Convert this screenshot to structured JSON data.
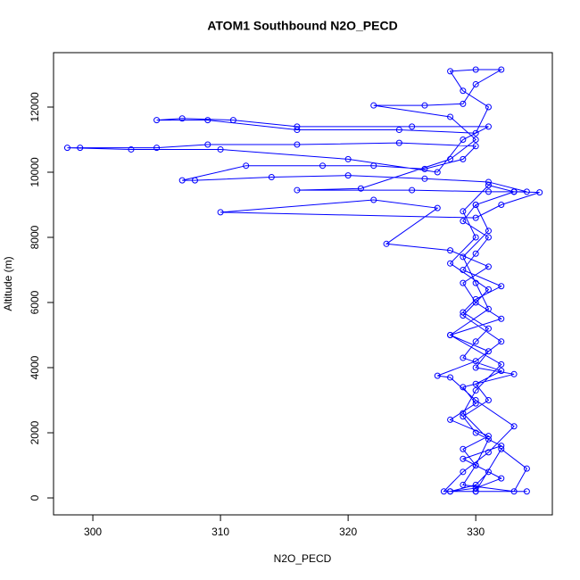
{
  "chart_data": {
    "type": "line",
    "title": "ATOM1 Southbound N2O_PECD",
    "x_label": "N2O_PECD",
    "y_label": "Altitude (m)",
    "xlim": [
      296.92,
      336.0
    ],
    "ylim": [
      -520,
      13671
    ],
    "xticks": [
      300,
      310,
      320,
      330
    ],
    "yticks": [
      0,
      2000,
      4000,
      6000,
      8000,
      10000,
      12000
    ],
    "markers": true,
    "series": [
      {
        "color": "#0000ff",
        "x": [
          328,
          330,
          331,
          329,
          332,
          330,
          329,
          331,
          330,
          332,
          329,
          330,
          331,
          329,
          330,
          332,
          329,
          330,
          331,
          329,
          330,
          333,
          334,
          331,
          326,
          320,
          314,
          308,
          307,
          312,
          318,
          322,
          326,
          329,
          330,
          324,
          316,
          309,
          305,
          299,
          298,
          303,
          310,
          320,
          327,
          329,
          331,
          325,
          316,
          311,
          307,
          305,
          309,
          316,
          324,
          330,
          331,
          329,
          328,
          330,
          332,
          330,
          329,
          326,
          322,
          328,
          330,
          328,
          321,
          316,
          325,
          331,
          333,
          335,
          332,
          330,
          310,
          322,
          327,
          323,
          328,
          331,
          329,
          330,
          332,
          328,
          331,
          330,
          333,
          329,
          330,
          328,
          331,
          329,
          330,
          332,
          330,
          328,
          334,
          330,
          327.5,
          329,
          331,
          333,
          330,
          328,
          327,
          330,
          332,
          329,
          331,
          328,
          330,
          329,
          331,
          333,
          330,
          331,
          329,
          330,
          331,
          328,
          332,
          330,
          329,
          331,
          330,
          329,
          333,
          334,
          332,
          330
        ],
        "values": [
          200,
          400,
          800,
          1200,
          1600,
          2000,
          2500,
          3000,
          3500,
          3900,
          4300,
          4800,
          5200,
          5700,
          6100,
          6500,
          7000,
          7500,
          8000,
          8500,
          9000,
          9400,
          9400,
          9700,
          9800,
          9900,
          9850,
          9750,
          9750,
          10200,
          10200,
          10200,
          10100,
          10400,
          10800,
          10900,
          10850,
          10850,
          10750,
          10750,
          10750,
          10700,
          10700,
          10400,
          10000,
          11000,
          11400,
          11400,
          11400,
          11600,
          11650,
          11600,
          11600,
          11300,
          11300,
          11200,
          12000,
          12500,
          13100,
          13150,
          13150,
          12700,
          12100,
          12050,
          12050,
          11700,
          11000,
          10400,
          9500,
          9450,
          9450,
          9400,
          9400,
          9380,
          9000,
          8600,
          8770,
          9150,
          8900,
          7800,
          7600,
          7100,
          6600,
          6000,
          5500,
          5000,
          4500,
          4000,
          3800,
          3400,
          2900,
          2400,
          1900,
          1500,
          1000,
          600,
          300,
          200,
          200,
          200,
          200,
          800,
          1400,
          2200,
          3000,
          3700,
          3750,
          4200,
          4800,
          5600,
          6400,
          7200,
          8000,
          8800,
          9600,
          9400,
          9000,
          8200,
          7400,
          6600,
          5800,
          5000,
          4100,
          3300,
          2600,
          1800,
          1000,
          400,
          200,
          900,
          1500,
          200
        ]
      }
    ]
  }
}
